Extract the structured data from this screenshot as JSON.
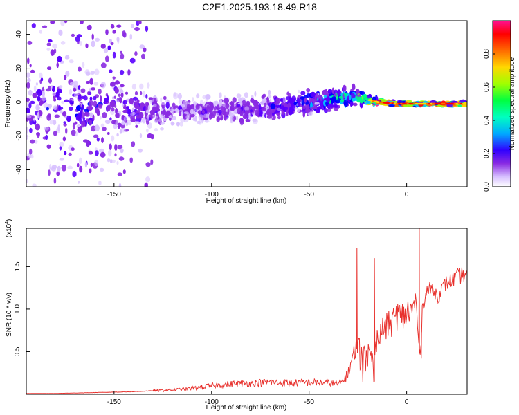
{
  "title": "C2E1.2025.193.18.49.R18",
  "colors": {
    "snr_line": "#e8322e",
    "colormap": [
      "#ffffff",
      "#d7c0ff",
      "#8a2be2",
      "#5a00ff",
      "#0000ff",
      "#00c8ff",
      "#00ff80",
      "#a0ff00",
      "#ffd700",
      "#ff6a00",
      "#ff0000",
      "#ff1090"
    ]
  },
  "chart_data": [
    {
      "type": "heatmap",
      "title": "C2E1.2025.193.18.49.R18",
      "xlabel": "Height of straight line (km)",
      "ylabel": "Frequency (Hz)",
      "xlim": [
        -195,
        31
      ],
      "ylim": [
        -50,
        48
      ],
      "xticks": [
        -150,
        -100,
        -50,
        0
      ],
      "xtick_labels": [
        "-150",
        "-100",
        "-50",
        "0"
      ],
      "yticks": [
        40,
        20,
        0,
        -20,
        -40
      ],
      "ytick_labels": [
        "40",
        "20",
        "0",
        "-20",
        "-40"
      ],
      "colorbar": {
        "label": "Normalized spectral amplitude",
        "range": [
          0,
          1
        ],
        "ticks": [
          0.0,
          0.2,
          0.4,
          0.6,
          0.8
        ],
        "tick_labels": [
          "0.0",
          "0.2",
          "0.4",
          "0.6",
          "0.8"
        ]
      },
      "ridge": {
        "x": [
          -195,
          -165,
          -145,
          -125,
          -100,
          -75,
          -50,
          -35,
          -25,
          -15,
          -5,
          5,
          15,
          31
        ],
        "center_hz": [
          -3,
          -4,
          -4,
          -5,
          -5,
          -4,
          0,
          2,
          3,
          0,
          -1,
          -1,
          -1,
          -1
        ],
        "spread_hz": [
          30,
          26,
          18,
          14,
          12,
          11,
          10,
          8,
          6,
          3,
          2,
          2,
          2,
          2
        ],
        "peak_amplitude": [
          0.25,
          0.3,
          0.25,
          0.2,
          0.2,
          0.25,
          0.35,
          0.45,
          0.55,
          0.85,
          0.95,
          0.9,
          0.9,
          0.9
        ]
      }
    },
    {
      "type": "line",
      "xlabel": "Height of straight line (km)",
      "ylabel": "SNR (10 * v/v)",
      "scale_label": "(x10",
      "scale_exponent": "4",
      "scale_suffix": ")",
      "xlim": [
        -195,
        31
      ],
      "ylim": [
        0,
        1.95
      ],
      "xticks": [
        -150,
        -100,
        -50,
        0
      ],
      "xtick_labels": [
        "-150",
        "-100",
        "-50",
        "0"
      ],
      "yticks": [
        0.5,
        1.0,
        1.5
      ],
      "ytick_labels": [
        "0.5",
        "1.0",
        "1.5"
      ],
      "series": [
        {
          "x": [
            -195,
            -180,
            -170,
            -160,
            -150,
            -140,
            -130,
            -120,
            -110,
            -100,
            -90,
            -80,
            -70,
            -60,
            -50,
            -40,
            -34,
            -30,
            -27,
            -25,
            -23,
            -20,
            -17,
            -15,
            -13,
            -10,
            -7,
            -5,
            -3,
            0,
            3,
            5,
            6,
            7,
            8,
            10,
            13,
            16,
            20,
            24,
            28,
            31
          ],
          "y": [
            0.01,
            0.01,
            0.015,
            0.02,
            0.025,
            0.03,
            0.04,
            0.05,
            0.07,
            0.1,
            0.12,
            0.13,
            0.14,
            0.13,
            0.14,
            0.13,
            0.12,
            0.25,
            0.5,
            0.6,
            0.45,
            0.55,
            0.4,
            0.65,
            0.75,
            0.8,
            0.85,
            0.95,
            0.9,
            0.95,
            0.98,
            1.1,
            0.6,
            0.45,
            1.0,
            1.2,
            1.25,
            1.15,
            1.3,
            1.35,
            1.4,
            1.42
          ]
        }
      ],
      "spikes": [
        {
          "x": -25.5,
          "y": 1.72
        },
        {
          "x": -16.5,
          "y": 1.6
        },
        {
          "x": 6.5,
          "y": 1.95
        },
        {
          "x": 7.5,
          "y": 0.42
        }
      ]
    }
  ]
}
